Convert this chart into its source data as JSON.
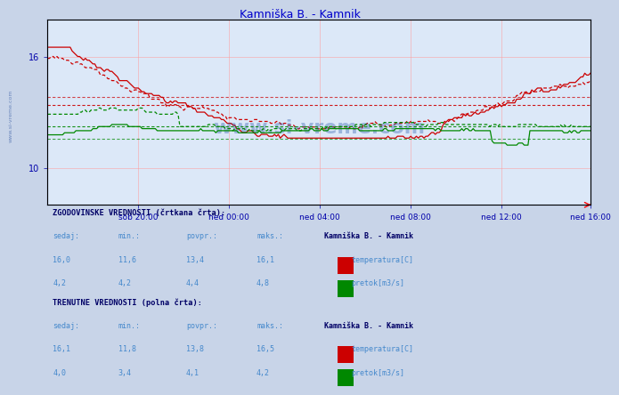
{
  "title": "Kamniška B. - Kamnik",
  "title_color": "#0000cc",
  "bg_color": "#c8d4e8",
  "plot_bg_color": "#dce8f8",
  "grid_color": "#ff9999",
  "axis_color": "#0000aa",
  "watermark_text": "www.si-vreme.com",
  "watermark_color": "#2255aa",
  "xlabel_ticks": [
    "sob 20:00",
    "ned 00:00",
    "ned 04:00",
    "ned 08:00",
    "ned 12:00",
    "ned 16:00"
  ],
  "n_points": 288,
  "ylim_temp": [
    8.0,
    18.0
  ],
  "ylim_flow": [
    2.5,
    7.0
  ],
  "temp_avg_hist": 13.4,
  "temp_avg_curr": 13.8,
  "flow_avg_hist": 4.4,
  "flow_avg_curr": 4.1,
  "red_color": "#cc0000",
  "green_color": "#008800",
  "text_label_color": "#4488cc",
  "text_bold_color": "#000066",
  "info_text_color": "#4488cc",
  "tick_label_color": "#0000aa",
  "spine_color": "#6688cc",
  "yticks": [
    10,
    16
  ]
}
